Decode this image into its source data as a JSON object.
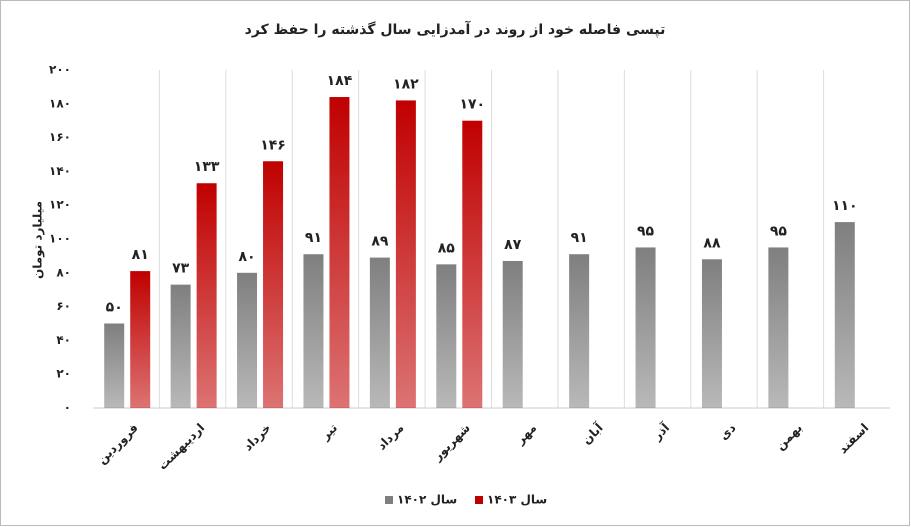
{
  "chart_data": {
    "type": "bar",
    "title": "تپسی فاصله خود از روند در آمدزایی سال گذشته را حفظ کرد",
    "y_label": "میلیارد تومان",
    "categories": [
      "فروردین",
      "اردیبهشت",
      "خرداد",
      "تیر",
      "مرداد",
      "شهریور",
      "مهر",
      "آبان",
      "آذر",
      "دی",
      "بهمن",
      "اسفند"
    ],
    "series": [
      {
        "name": "سال ۱۴۰۲",
        "color": "#7f7f7f",
        "values": [
          50,
          73,
          80,
          91,
          89,
          85,
          87,
          91,
          95,
          88,
          95,
          110
        ],
        "value_labels": [
          "۵۰",
          "۷۳",
          "۸۰",
          "۹۱",
          "۸۹",
          "۸۵",
          "۸۷",
          "۹۱",
          "۹۵",
          "۸۸",
          "۹۵",
          "۱۱۰"
        ]
      },
      {
        "name": "سال ۱۴۰۳",
        "color": "#c00000",
        "values": [
          81,
          133,
          146,
          184,
          182,
          170,
          null,
          null,
          null,
          null,
          null,
          null
        ],
        "value_labels": [
          "۸۱",
          "۱۳۳",
          "۱۴۶",
          "۱۸۴",
          "۱۸۲",
          "۱۷۰",
          null,
          null,
          null,
          null,
          null,
          null
        ]
      }
    ],
    "ylim": [
      0,
      200
    ],
    "yticks": [
      {
        "value": 0,
        "label": "۰"
      },
      {
        "value": 20,
        "label": "۲۰"
      },
      {
        "value": 40,
        "label": "۴۰"
      },
      {
        "value": 60,
        "label": "۶۰"
      },
      {
        "value": 80,
        "label": "۸۰"
      },
      {
        "value": 100,
        "label": "۱۰۰"
      },
      {
        "value": 120,
        "label": "۱۲۰"
      },
      {
        "value": 140,
        "label": "۱۴۰"
      },
      {
        "value": 160,
        "label": "۱۶۰"
      },
      {
        "value": 180,
        "label": "۱۸۰"
      },
      {
        "value": 200,
        "label": "۲۰۰"
      }
    ],
    "legend": "bottom"
  }
}
